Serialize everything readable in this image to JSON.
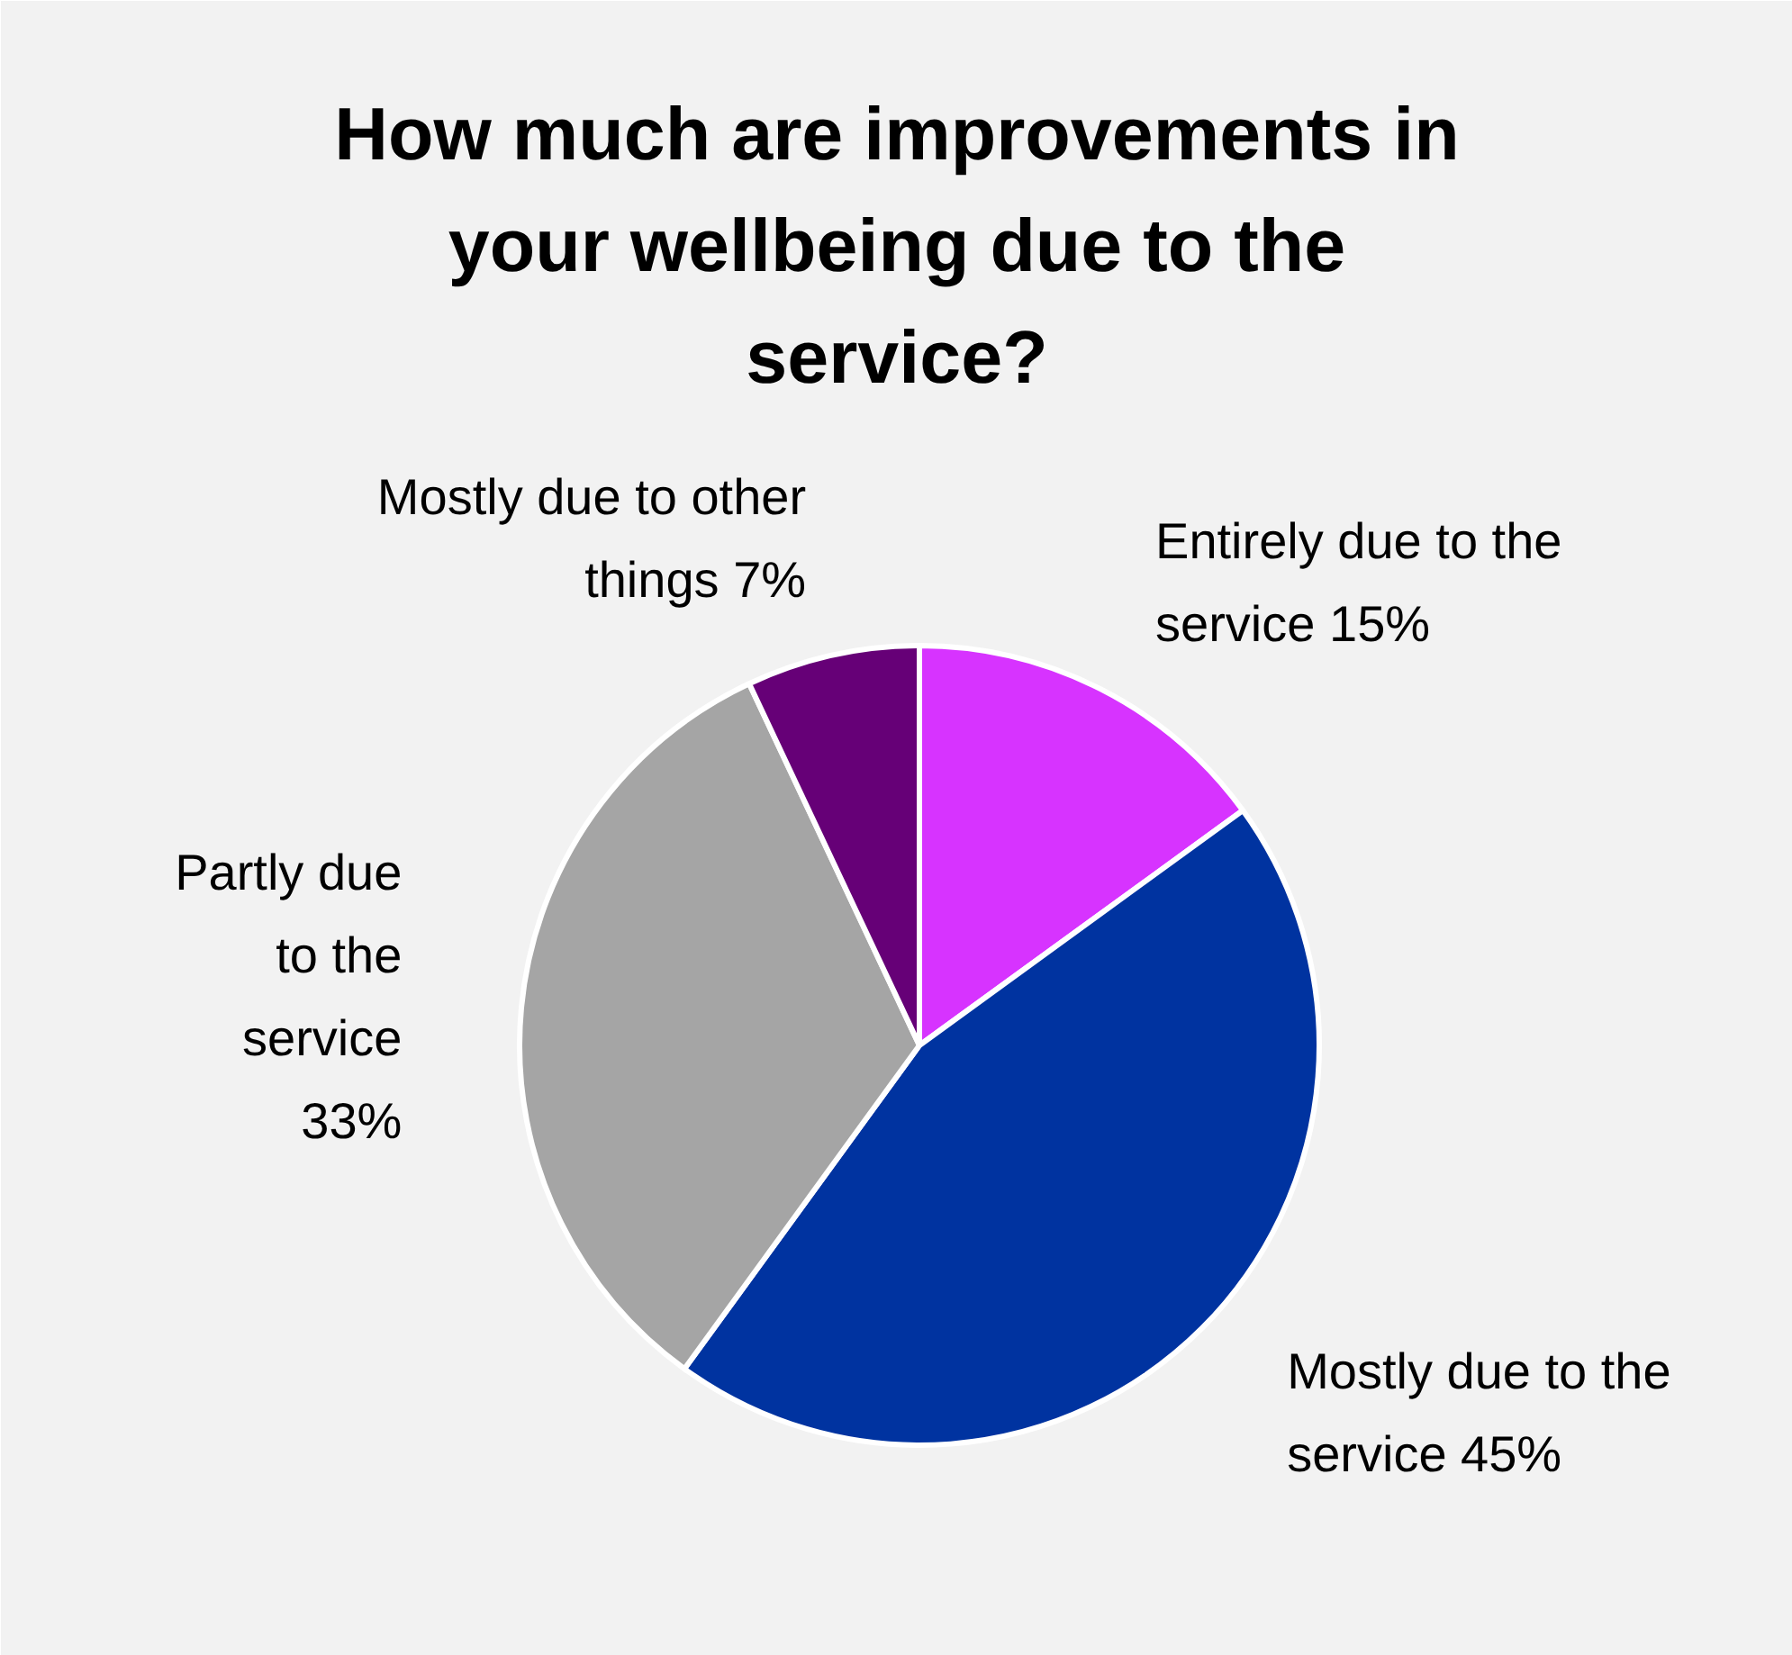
{
  "chart_data": {
    "type": "pie",
    "title": "How much are improvements in your wellbeing due to the service?",
    "categories": [
      "Entirely due to the service",
      "Mostly due to the service",
      "Partly due to the service",
      "Mostly due to other things"
    ],
    "values": [
      15,
      45,
      33,
      7
    ],
    "value_labels": [
      "15%",
      "45%",
      "33%",
      "7%"
    ],
    "colors": [
      "#d733ff",
      "#0033a0",
      "#a5a5a5",
      "#660077"
    ]
  }
}
